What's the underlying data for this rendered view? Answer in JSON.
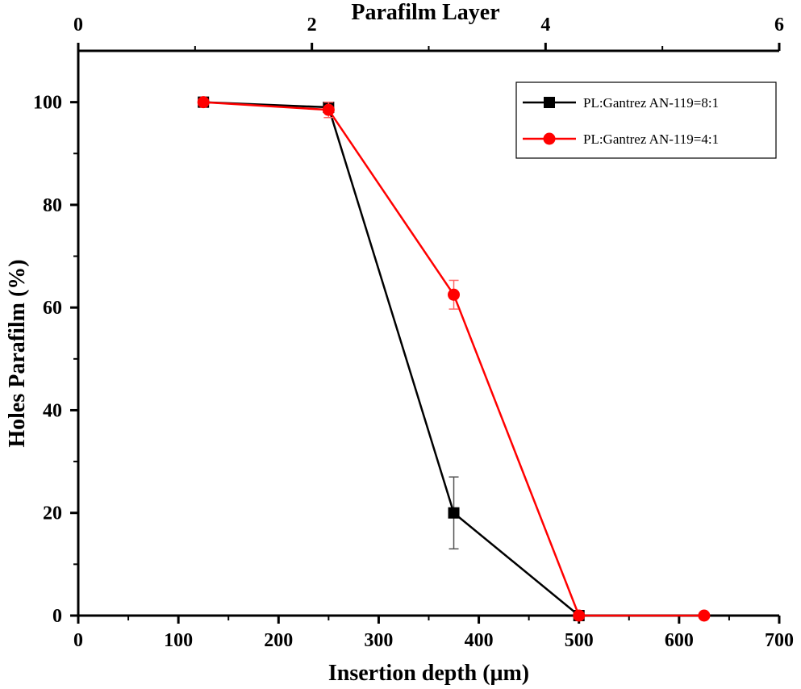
{
  "chart_data": {
    "type": "line",
    "xlabel": "Insertion depth (μm)",
    "x2label": "Parafilm Layer",
    "ylabel": "Holes Parafilm (%)",
    "xlim": [
      0,
      700
    ],
    "x2lim": [
      0,
      6
    ],
    "ylim": [
      0,
      110
    ],
    "x_ticks": [
      0,
      100,
      200,
      300,
      400,
      500,
      600,
      700
    ],
    "x2_ticks": [
      0,
      2,
      4,
      6
    ],
    "y_ticks": [
      0,
      20,
      40,
      60,
      80,
      100
    ],
    "legend_position": "top-right",
    "grid": false,
    "series": [
      {
        "name": "PL:Gantrez AN-119=8:1",
        "color": "#000000",
        "marker": "square",
        "x": [
          125,
          250,
          375,
          500
        ],
        "y": [
          100,
          99,
          20,
          0
        ],
        "err": [
          0,
          0.8,
          7,
          0
        ]
      },
      {
        "name": "PL:Gantrez AN-119=4:1",
        "color": "#ff0000",
        "marker": "circle",
        "x": [
          125,
          250,
          375,
          500,
          625
        ],
        "y": [
          100,
          98.5,
          62.5,
          0,
          0
        ],
        "err": [
          0,
          1.5,
          2.8,
          0,
          0
        ]
      }
    ]
  }
}
